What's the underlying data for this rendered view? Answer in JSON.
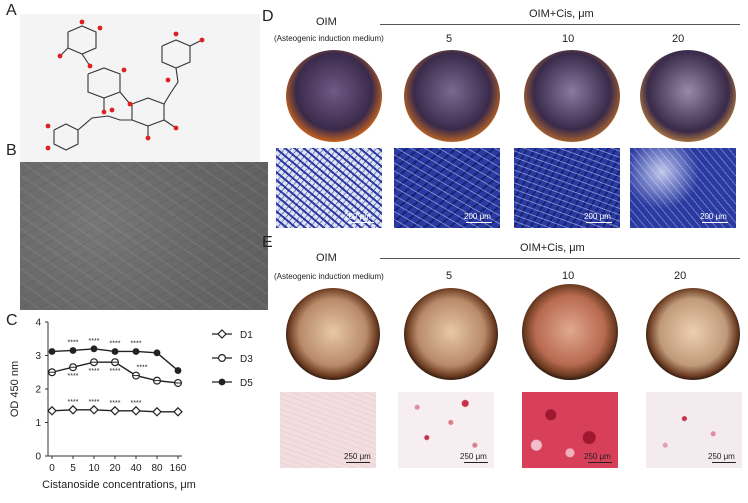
{
  "panels": {
    "a": {
      "letter": "A"
    },
    "b": {
      "letter": "B"
    },
    "c": {
      "letter": "C"
    },
    "d": {
      "letter": "D",
      "control_label": "OIM",
      "control_sublabel": "(Asteogenic induction medium)",
      "group_label": "OIM+Cis, μm",
      "doses": [
        "5",
        "10",
        "20"
      ],
      "scale_label": "200 μm"
    },
    "e": {
      "letter": "E",
      "control_label": "OIM",
      "control_sublabel": "(Asteogenic induction medium)",
      "group_label": "OIM+Cis, μm",
      "doses": [
        "5",
        "10",
        "20"
      ],
      "scale_label": "250 μm"
    }
  },
  "colors": {
    "alp_stain": "#2a3aa0",
    "alp_dish": "#3a2a4a",
    "ars_stain": "#c8304a",
    "ars_dish": "#b88a6a",
    "molecule_oxygen": "#e02020",
    "sem_background": "#6b6b6b"
  },
  "chart_data": {
    "type": "line",
    "categories": [
      "0",
      "5",
      "10",
      "20",
      "40",
      "80",
      "160"
    ],
    "xlabel": "Cistanoside concentrations, μm",
    "ylabel": "OD 450 nm",
    "ylim": [
      0,
      4
    ],
    "yticks": [
      "0",
      "1",
      "2",
      "3",
      "4"
    ],
    "series": [
      {
        "name": "D1",
        "marker": "diamond-open",
        "values": [
          1.35,
          1.38,
          1.38,
          1.35,
          1.35,
          1.32,
          1.32
        ],
        "significance": [
          "",
          "****",
          "****",
          "****",
          "****",
          "",
          ""
        ]
      },
      {
        "name": "D3",
        "marker": "circle-open",
        "values": [
          2.5,
          2.65,
          2.8,
          2.8,
          2.4,
          2.25,
          2.18
        ],
        "significance": [
          "",
          "****",
          "****",
          "****",
          "****",
          "",
          ""
        ]
      },
      {
        "name": "D5",
        "marker": "circle-filled",
        "values": [
          3.12,
          3.15,
          3.2,
          3.12,
          3.12,
          3.08,
          2.55
        ],
        "significance": [
          "",
          "****",
          "****",
          "****",
          "****",
          "",
          ""
        ]
      }
    ],
    "legend_position": "right"
  }
}
